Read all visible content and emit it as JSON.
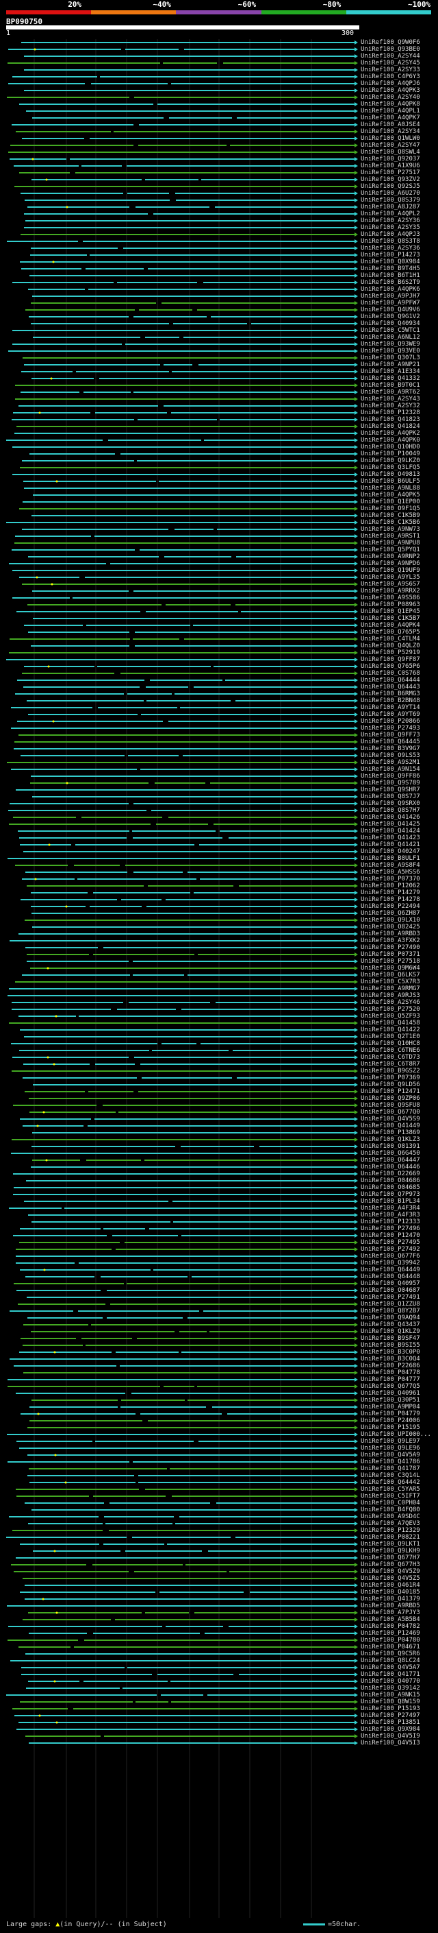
{
  "scale": {
    "ticks": [
      "20%",
      "~40%",
      "~60%",
      "~80%",
      "~100%"
    ],
    "colors": [
      "#dd1111",
      "#ee7711",
      "#8844aa",
      "#22aa22",
      "#33cccc"
    ]
  },
  "query": {
    "id": "BP090750",
    "range_start": "1",
    "range_end": "300"
  },
  "colors": {
    "cyan": "#33cccc",
    "green": "#44aa22",
    "gap": "#ffff00"
  },
  "hits": [
    "UniRef100_Q9W0F6",
    "UniRef100_Q93BE0",
    "UniRef100_A2SY44",
    "UniRef100_A2SY45",
    "UniRef100_A2SY33",
    "UniRef100_C4P6Y3",
    "UniRef100_A4QPJ6",
    "UniRef100_A4QPK3",
    "UniRef100_A2SY40",
    "UniRef100_A4QPK8",
    "UniRef100_A4QPL1",
    "UniRef100_A4QPK7",
    "UniRef100_A0JSE4",
    "UniRef100_A2SY34",
    "UniRef100_Q1WLW0",
    "UniRef100_A2SY47",
    "UniRef100_Q8SWL4",
    "UniRef100_Q92037",
    "UniRef100_A1X9U6",
    "UniRef100_P27517",
    "UniRef100_Q93ZV2",
    "UniRef100_Q92SJ5",
    "UniRef100_A6U270",
    "UniRef100_Q8S379",
    "UniRef100_A8J287",
    "UniRef100_A4QPL2",
    "UniRef100_A2SY36",
    "UniRef100_A2SY35",
    "UniRef100_A4QPJ3",
    "UniRef100_Q8S3T8",
    "UniRef100_A2SY36",
    "UniRef100_P14273",
    "UniRef100_Q0X984",
    "UniRef100_B9T4H5",
    "UniRef100_B6T1H1",
    "UniRef100_B6S2T9",
    "UniRef100_A4QPK6",
    "UniRef100_A9PJH7",
    "UniRef100_A9PFW7",
    "UniRef100_Q4U9V6",
    "UniRef100_Q9G1V2",
    "UniRef100_Q40934",
    "UniRef100_C5WTC1",
    "UniRef100_A6NL12",
    "UniRef100_Q93WE9",
    "UniRef100_Q93VE0",
    "UniRef100_Q307L3",
    "UniRef100_A9NP21",
    "UniRef100_A1E334",
    "UniRef100_Q41332",
    "UniRef100_B9T0C1",
    "UniRef100_A9RT62",
    "UniRef100_A2SY43",
    "UniRef100_A2SY32",
    "UniRef100_P12328",
    "UniRef100_Q41823",
    "UniRef100_Q41824",
    "UniRef100_A4QPK2",
    "UniRef100_A4QPK0",
    "UniRef100_Q10HD0",
    "UniRef100_P10049",
    "UniRef100_Q9LKZ0",
    "UniRef100_Q3LFQ5",
    "UniRef100_O49813",
    "UniRef100_B6ULF5",
    "UniRef100_A9NL88",
    "UniRef100_A4QPK5",
    "UniRef100_Q1EP00",
    "UniRef100_O9F1Q5",
    "UniRef100_C1K5B9",
    "UniRef100_C1K5B6",
    "UniRef100_A9NW73",
    "UniRef100_A9RST1",
    "UniRef100_A9NPU8",
    "UniRef100_Q5PYQ1",
    "UniRef100_A9RNP2",
    "UniRef100_A9NPD6",
    "UniRef100_Q19UF9",
    "UniRef100_A9YL35",
    "UniRef100_A9S6S7",
    "UniRef100_A9RRX2",
    "UniRef100_A9S586",
    "UniRef100_P08963",
    "UniRef100_Q1EP45",
    "UniRef100_C1K5B7",
    "UniRef100_A4QPK4",
    "UniRef100_Q765P5",
    "UniRef100_C4TLM4",
    "UniRef100_Q4QLZ0",
    "UniRef100_P52919",
    "UniRef100_Q9FF87",
    "UniRef100_Q765P6",
    "UniRef100_C0S768",
    "UniRef100_Q64444",
    "UniRef100_Q64443",
    "UniRef100_B6RMG3",
    "UniRef100_B2BN48",
    "UniRef100_A9YT14",
    "UniRef100_A9YT69",
    "UniRef100_P20866",
    "UniRef100_P27493",
    "UniRef100_Q9FF73",
    "UniRef100_Q64445",
    "UniRef100_B3V9G7",
    "UniRef100_O9LS53",
    "UniRef100_A9S2M1",
    "UniRef100_A9N154",
    "UniRef100_Q9FF86",
    "UniRef100_Q9S789",
    "UniRef100_Q9SHR7",
    "UniRef100_Q8S7J7",
    "UniRef100_Q9SRX0",
    "UniRef100_Q8S7H7",
    "UniRef100_Q41426",
    "UniRef100_Q41425",
    "UniRef100_Q41424",
    "UniRef100_Q41423",
    "UniRef100_Q41421",
    "UniRef100_O40247",
    "UniRef100_B8ULF1",
    "UniRef100_A9S8F4",
    "UniRef100_A5HSS6",
    "UniRef100_P07370",
    "UniRef100_P12062",
    "UniRef100_P14279",
    "UniRef100_P14278",
    "UniRef100_P22494",
    "UniRef100_Q6ZH87",
    "UniRef100_Q9LX10",
    "UniRef100_O82425",
    "UniRef100_A9RBD3",
    "UniRef100_A3FXK2",
    "UniRef100_P27490",
    "UniRef100_P07371",
    "UniRef100_P27518",
    "UniRef100_Q9M6W4",
    "UniRef100_Q6LKS7",
    "UniRef100_C5X7R3",
    "UniRef100_A9RMG7",
    "UniRef100_A9RJS3",
    "UniRef100_A2SY46",
    "UniRef100_P27520",
    "UniRef100_Q5ZF93",
    "UniRef100_Q41458",
    "UniRef100_Q41422",
    "UniRef100_Q2T1E0",
    "UniRef100_Q10HC8",
    "UniRef100_C6TNE6",
    "UniRef100_C6TD73",
    "UniRef100_C6T8R7",
    "UniRef100_B9GSZ2",
    "UniRef100_P07369",
    "UniRef100_Q9LD56",
    "UniRef100_P12471",
    "UniRef100_Q9ZP06",
    "UniRef100_Q9SFU8",
    "UniRef100_Q677Q0",
    "UniRef100_Q4V5S9",
    "UniRef100_Q41449",
    "UniRef100_P13869",
    "UniRef100_Q1KLZ3",
    "UniRef100_O81391",
    "UniRef100_Q6G450",
    "UniRef100_O64447",
    "UniRef100_O64446",
    "UniRef100_O22669",
    "UniRef100_O04686",
    "UniRef100_O04685",
    "UniRef100_Q7P973",
    "UniRef100_B1PL34",
    "UniRef100_A4F3R4",
    "UniRef100_A4F3R3",
    "UniRef100_P12333",
    "UniRef100_P27496",
    "UniRef100_P12470",
    "UniRef100_P27495",
    "UniRef100_P27492",
    "UniRef100_Q677F6",
    "UniRef100_Q39942",
    "UniRef100_Q64449",
    "UniRef100_Q64448",
    "UniRef100_Q40957",
    "UniRef100_O04687",
    "UniRef100_P27491",
    "UniRef100_Q1ZZU8",
    "UniRef100_Q8Y2B7",
    "UniRef100_Q9AQ94",
    "UniRef100_Q43437",
    "UniRef100_Q1KLZ9",
    "UniRef100_B9SF47",
    "UniRef100_B9SI55",
    "UniRef100_B3C0P0",
    "UniRef100_B3C0Q4",
    "UniRef100_P22686",
    "UniRef100_P04778",
    "UniRef100_P04777",
    "UniRef100_Q677Q5",
    "UniRef100_Q40961",
    "UniRef100_Q30P51",
    "UniRef100_A9MP04",
    "UniRef100_P04779",
    "UniRef100_P24006",
    "UniRef100_P15195",
    "UniRef100_UPI000...",
    "UniRef100_Q9LE97",
    "UniRef100_Q9LE96",
    "UniRef100_Q4V5A9",
    "UniRef100_Q41786",
    "UniRef100_Q41787",
    "UniRef100_C3Q14L",
    "UniRef100_Q64442",
    "UniRef100_C5YAR5",
    "UniRef100_C5IFT7",
    "UniRef100_C0PH04",
    "UniRef100_B4FQ80",
    "UniRef100_A9SD4C",
    "UniRef100_A7QEV3",
    "UniRef100_P12329",
    "UniRef100_P08221",
    "UniRef100_Q9LKT1",
    "UniRef100_Q9LKH9",
    "UniRef100_Q677H7",
    "UniRef100_Q677H3",
    "UniRef100_Q4V5Z9",
    "UniRef100_Q4V5Z5",
    "UniRef100_Q461R4",
    "UniRef100_Q40185",
    "UniRef100_Q41379",
    "UniRef100_A9RBD5",
    "UniRef100_A7PJY3",
    "UniRef100_A5B5B4",
    "UniRef100_P04782",
    "UniRef100_P12469",
    "UniRef100_P04780",
    "UniRef100_P04671",
    "UniRef100_Q9C5R6",
    "UniRef100_Q8LC24",
    "UniRef100_Q4V5A7",
    "UniRef100_Q41771",
    "UniRef100_Q40770",
    "UniRef100_Q39142",
    "UniRef100_A9NK15",
    "UniRef100_Q8W159",
    "UniRef100_P15193",
    "UniRef100_P27497",
    "UniRef100_P13851",
    "UniRef100_Q9X984",
    "UniRef100_Q4V5I9",
    "UniRef100_Q4V5I3"
  ],
  "footer": {
    "legend": "Large gaps: ",
    "legend_query": "▲",
    "legend_query_text": "(in Query)/-- (in Subject)",
    "scale_text": "=50char."
  }
}
